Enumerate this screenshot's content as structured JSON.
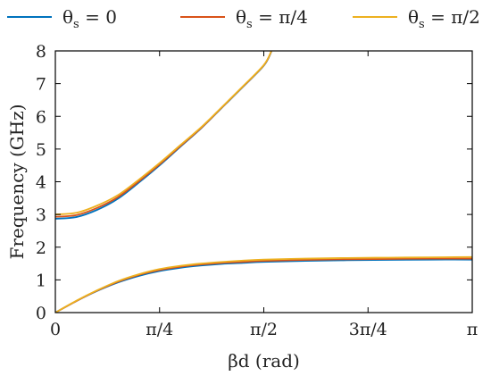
{
  "chart_data": {
    "type": "line",
    "xlabel": "βd (rad)",
    "ylabel": "Frequency (GHz)",
    "x_tick_labels": [
      "0",
      "π/4",
      "π/2",
      "3π/4",
      "π"
    ],
    "y_tick_labels": [
      "0",
      "1",
      "2",
      "3",
      "4",
      "5",
      "6",
      "7",
      "8"
    ],
    "x_ticks": [
      0,
      0.7854,
      1.5708,
      2.3562,
      3.1416
    ],
    "y_ticks": [
      0,
      1,
      2,
      3,
      4,
      5,
      6,
      7,
      8
    ],
    "xlim": [
      0,
      3.1416
    ],
    "ylim": [
      0,
      8
    ],
    "grid": false,
    "legend_position": "top",
    "series": [
      {
        "name": "θs = 0",
        "legend_symbol": "θ",
        "legend_subscript": "s",
        "legend_rest": " = 0",
        "color": "#0072BD",
        "lower_band": {
          "x": [
            0,
            0.157,
            0.314,
            0.471,
            0.628,
            0.785,
            0.942,
            1.1,
            1.257,
            1.414,
            1.571,
            1.885,
            2.199,
            2.513,
            2.827,
            3.1416
          ],
          "y": [
            0,
            0.35,
            0.66,
            0.92,
            1.12,
            1.27,
            1.37,
            1.44,
            1.49,
            1.52,
            1.55,
            1.58,
            1.6,
            1.61,
            1.62,
            1.62
          ]
        },
        "upper_band": {
          "x": [
            0,
            0.157,
            0.314,
            0.471,
            0.628,
            0.785,
            0.942,
            1.1,
            1.257,
            1.414,
            1.571,
            1.628
          ],
          "y": [
            2.87,
            2.92,
            3.14,
            3.48,
            3.97,
            4.5,
            5.07,
            5.64,
            6.27,
            6.9,
            7.55,
            7.98
          ]
        }
      },
      {
        "name": "θs = π/4",
        "legend_symbol": "θ",
        "legend_subscript": "s",
        "legend_rest": " = π/4",
        "color": "#D95319",
        "lower_band": {
          "x": [
            0,
            0.157,
            0.314,
            0.471,
            0.628,
            0.785,
            0.942,
            1.1,
            1.257,
            1.414,
            1.571,
            1.885,
            2.199,
            2.513,
            2.827,
            3.1416
          ],
          "y": [
            0,
            0.35,
            0.67,
            0.94,
            1.15,
            1.3,
            1.4,
            1.47,
            1.52,
            1.55,
            1.58,
            1.61,
            1.63,
            1.64,
            1.65,
            1.65
          ]
        },
        "upper_band": {
          "x": [
            0,
            0.157,
            0.314,
            0.471,
            0.628,
            0.785,
            0.942,
            1.1,
            1.257,
            1.414,
            1.571,
            1.628
          ],
          "y": [
            2.93,
            2.98,
            3.2,
            3.53,
            4.01,
            4.53,
            5.09,
            5.65,
            6.28,
            6.91,
            7.56,
            7.99
          ]
        }
      },
      {
        "name": "θs = π/2",
        "legend_symbol": "θ",
        "legend_subscript": "s",
        "legend_rest": " = π/2",
        "color": "#EDB120",
        "lower_band": {
          "x": [
            0,
            0.157,
            0.314,
            0.471,
            0.628,
            0.785,
            0.942,
            1.1,
            1.257,
            1.414,
            1.571,
            1.885,
            2.199,
            2.513,
            2.827,
            3.1416
          ],
          "y": [
            0,
            0.36,
            0.68,
            0.96,
            1.17,
            1.33,
            1.43,
            1.5,
            1.55,
            1.59,
            1.62,
            1.65,
            1.67,
            1.68,
            1.69,
            1.7
          ]
        },
        "upper_band": {
          "x": [
            0,
            0.157,
            0.314,
            0.471,
            0.628,
            0.785,
            0.942,
            1.1,
            1.257,
            1.414,
            1.571,
            1.628
          ],
          "y": [
            3.0,
            3.05,
            3.27,
            3.59,
            4.06,
            4.57,
            5.12,
            5.67,
            6.29,
            6.92,
            7.57,
            8.0
          ]
        }
      }
    ]
  }
}
